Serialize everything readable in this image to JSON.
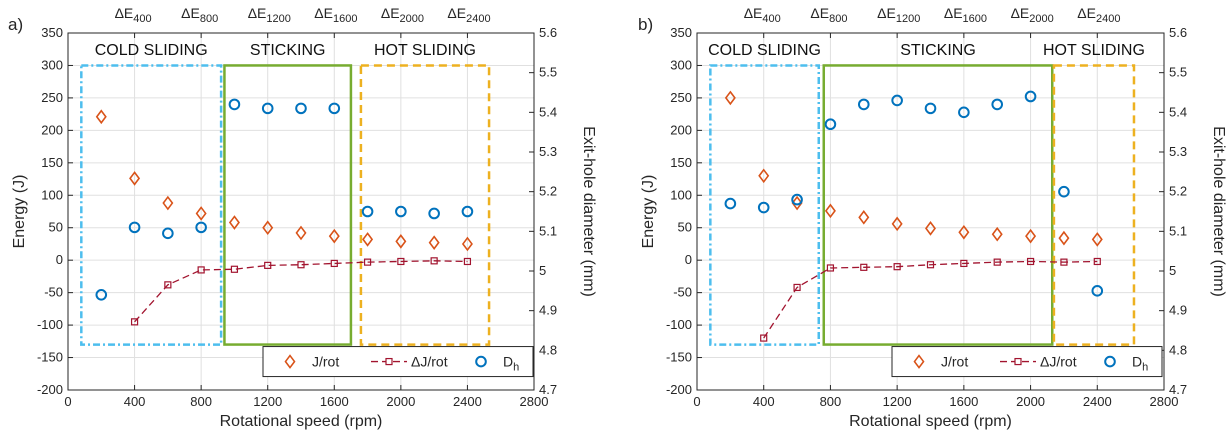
{
  "colors": {
    "j_rot": "#d95319",
    "delta_j": "#a2142f",
    "dh": "#0072bd",
    "cold_box": "#4dbeee",
    "stick_box": "#77ac30",
    "hot_box": "#edb120",
    "grid": "#e0e0e0"
  },
  "chart_data": [
    {
      "panel_label": "a)",
      "type": "scatter",
      "xlabel": "Rotational speed (rpm)",
      "ylabel_left": "Energy (J)",
      "ylabel_right": "Exit-hole diameter (mm)",
      "xlim": [
        0,
        2800
      ],
      "ylim_left": [
        -200,
        350
      ],
      "ylim_right": [
        4.7,
        5.6
      ],
      "x_ticks": [
        "0",
        "400",
        "800",
        "1200",
        "1600",
        "2000",
        "2400",
        "2800"
      ],
      "y_left_ticks": [
        "-200",
        "-150",
        "-100",
        "-50",
        "0",
        "50",
        "100",
        "150",
        "200",
        "250",
        "300",
        "350"
      ],
      "y_right_ticks": [
        "4.7",
        "4.8",
        "4.9",
        "5",
        "5.1",
        "5.2",
        "5.3",
        "5.4",
        "5.5",
        "5.6"
      ],
      "top_labels": [
        {
          "x": 400,
          "base": "ΔE",
          "sub": "400"
        },
        {
          "x": 800,
          "base": "ΔE",
          "sub": "800"
        },
        {
          "x": 1200,
          "base": "ΔE",
          "sub": "1200"
        },
        {
          "x": 1600,
          "base": "ΔE",
          "sub": "1600"
        },
        {
          "x": 2000,
          "base": "ΔE",
          "sub": "2000"
        },
        {
          "x": 2400,
          "base": "ΔE",
          "sub": "2400"
        }
      ],
      "regions": [
        {
          "label": "COLD SLIDING",
          "x": [
            80,
            920
          ],
          "y": [
            -130,
            300
          ],
          "style": "dashdot",
          "color_key": "cold_box"
        },
        {
          "label": "STICKING",
          "x": [
            940,
            1700
          ],
          "y": [
            -130,
            300
          ],
          "style": "solid",
          "color_key": "stick_box"
        },
        {
          "label": "HOT SLIDING",
          "x": [
            1760,
            2530
          ],
          "y": [
            -130,
            300
          ],
          "style": "dashed",
          "color_key": "hot_box"
        }
      ],
      "series": [
        {
          "name": "J/rot",
          "marker": "diamond",
          "axis": "left",
          "color_key": "j_rot",
          "x": [
            200,
            400,
            600,
            800,
            1000,
            1200,
            1400,
            1600,
            1800,
            2000,
            2200,
            2400
          ],
          "y": [
            221,
            126,
            88,
            72,
            58,
            50,
            42,
            37,
            32,
            29,
            27,
            25
          ]
        },
        {
          "name": "ΔJ/rot",
          "marker": "square",
          "axis": "left",
          "line": "dashed",
          "color_key": "delta_j",
          "x": [
            400,
            600,
            800,
            1000,
            1200,
            1400,
            1600,
            1800,
            2000,
            2200,
            2400
          ],
          "y": [
            -95,
            -38,
            -15,
            -14,
            -8,
            -7,
            -5,
            -3,
            -2,
            -1,
            -2
          ]
        },
        {
          "name": "D",
          "name_sub": "h",
          "marker": "circle",
          "axis": "right",
          "color_key": "dh",
          "x": [
            200,
            400,
            600,
            800,
            1000,
            1200,
            1400,
            1600,
            1800,
            2000,
            2200,
            2400
          ],
          "y": [
            4.94,
            5.11,
            5.095,
            5.11,
            5.42,
            5.41,
            5.41,
            5.41,
            5.15,
            5.15,
            5.145,
            5.15
          ]
        }
      ]
    },
    {
      "panel_label": "b)",
      "type": "scatter",
      "xlabel": "Rotational speed (rpm)",
      "ylabel_left": "Energy (J)",
      "ylabel_right": "Exit-hole diameter (mm)",
      "xlim": [
        0,
        2800
      ],
      "ylim_left": [
        -200,
        350
      ],
      "ylim_right": [
        4.7,
        5.6
      ],
      "x_ticks": [
        "0",
        "400",
        "800",
        "1200",
        "1600",
        "2000",
        "2400",
        "2800"
      ],
      "y_left_ticks": [
        "-200",
        "-150",
        "-100",
        "-50",
        "0",
        "50",
        "100",
        "150",
        "200",
        "250",
        "300",
        "350"
      ],
      "y_right_ticks": [
        "4.7",
        "4.8",
        "4.9",
        "5",
        "5.1",
        "5.2",
        "5.3",
        "5.4",
        "5.5",
        "5.6"
      ],
      "top_labels": [
        {
          "x": 400,
          "base": "ΔE",
          "sub": "400"
        },
        {
          "x": 800,
          "base": "ΔE",
          "sub": "800"
        },
        {
          "x": 1200,
          "base": "ΔE",
          "sub": "1200"
        },
        {
          "x": 1600,
          "base": "ΔE",
          "sub": "1600"
        },
        {
          "x": 2000,
          "base": "ΔE",
          "sub": "2000"
        },
        {
          "x": 2400,
          "base": "ΔE",
          "sub": "2400"
        }
      ],
      "regions": [
        {
          "label": "COLD SLIDING",
          "x": [
            80,
            730
          ],
          "y": [
            -130,
            300
          ],
          "style": "dashdot",
          "color_key": "cold_box"
        },
        {
          "label": "STICKING",
          "x": [
            760,
            2130
          ],
          "y": [
            -130,
            300
          ],
          "style": "solid",
          "color_key": "stick_box"
        },
        {
          "label": "HOT SLIDING",
          "x": [
            2140,
            2620
          ],
          "y": [
            -130,
            300
          ],
          "style": "dashed",
          "color_key": "hot_box"
        }
      ],
      "series": [
        {
          "name": "J/rot",
          "marker": "diamond",
          "axis": "left",
          "color_key": "j_rot",
          "x": [
            200,
            400,
            600,
            800,
            1000,
            1200,
            1400,
            1600,
            1800,
            2000,
            2200,
            2400
          ],
          "y": [
            250,
            130,
            88,
            76,
            66,
            56,
            49,
            43,
            40,
            37,
            34,
            32
          ]
        },
        {
          "name": "ΔJ/rot",
          "marker": "square",
          "axis": "left",
          "line": "dashed",
          "color_key": "delta_j",
          "x": [
            400,
            600,
            800,
            1000,
            1200,
            1400,
            1600,
            1800,
            2000,
            2200,
            2400
          ],
          "y": [
            -120,
            -42,
            -12,
            -11,
            -10,
            -7,
            -5,
            -3,
            -2,
            -3,
            -2
          ]
        },
        {
          "name": "D",
          "name_sub": "h",
          "marker": "circle",
          "axis": "right",
          "color_key": "dh",
          "x": [
            200,
            400,
            600,
            800,
            1000,
            1200,
            1400,
            1600,
            1800,
            2000,
            2200,
            2400
          ],
          "y": [
            5.17,
            5.16,
            5.18,
            5.37,
            5.42,
            5.43,
            5.41,
            5.4,
            5.42,
            5.44,
            5.2,
            4.95
          ]
        }
      ]
    }
  ]
}
